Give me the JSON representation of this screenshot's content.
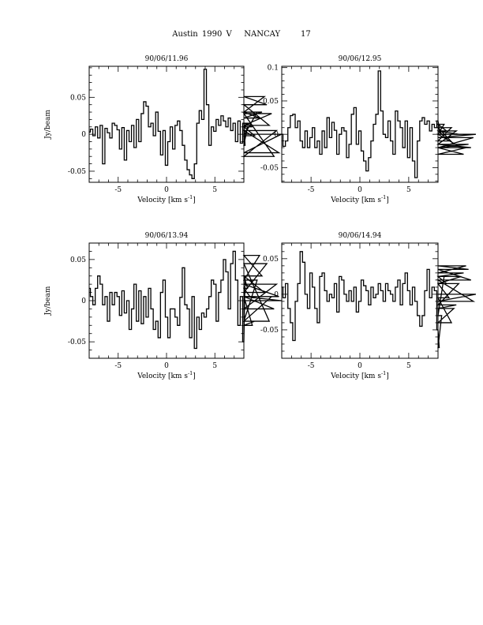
{
  "page": {
    "title": "Austin 1990 V   NANCAY     17"
  },
  "chart_data": [
    {
      "type": "line",
      "title": "90/06/11.96",
      "xlabel": "Velocity [km s",
      "xlabel_sup": "-1",
      "xlabel_close": "]",
      "ylabel": "Jy/beam",
      "xlim": [
        -8,
        8
      ],
      "ylim": [
        -0.065,
        0.092
      ],
      "xticks": [
        -5,
        0,
        5
      ],
      "xtick_labels": [
        "-5",
        "0",
        "5"
      ],
      "yticks": [
        -0.05,
        0,
        0.05
      ],
      "ytick_labels": [
        "-0.05",
        "0",
        "0.05"
      ],
      "series": [
        {
          "step": 0.25,
          "x_start": -8,
          "values": [
            0.003,
            0.007,
            -0.002,
            0.01,
            -0.005,
            0.012,
            -0.04,
            0.008,
            0.002,
            -0.005,
            0.015,
            0.012,
            0.006,
            -0.02,
            0.009,
            -0.035,
            0.005,
            -0.01,
            0.012,
            -0.018,
            0.02,
            -0.01,
            0.028,
            0.044,
            0.038,
            0.01,
            0.015,
            -0.002,
            0.03,
            0.004,
            -0.028,
            0.005,
            -0.042,
            -0.01,
            0.01,
            -0.02,
            0.012,
            0.018,
            0.005,
            -0.015,
            -0.035,
            -0.048,
            -0.055,
            -0.06,
            -0.04,
            0.015,
            0.032,
            0.02,
            0.088,
            0.04,
            -0.015,
            0.01,
            0.004,
            0.02,
            0.012,
            0.025,
            0.018,
            0.01,
            0.022,
            0.005,
            0.015,
            -0.01,
            0.018,
            -0.012,
            0.015,
            -0.015,
            0.01,
            0.015,
            0.01,
            -0.002,
            0.03,
            0.022,
            0.03,
            0.051,
            0.04,
            0.012,
            0.028,
            -0.03,
            0.005,
            -0.025,
            0.0
          ]
        }
      ]
    },
    {
      "type": "line",
      "title": "90/06/12.95",
      "xlabel": "Velocity [km s",
      "xlabel_sup": "-1",
      "xlabel_close": "]",
      "ylabel": "",
      "xlim": [
        -8,
        8
      ],
      "ylim": [
        -0.072,
        0.102
      ],
      "xticks": [
        -5,
        0,
        5
      ],
      "xtick_labels": [
        "-5",
        "0",
        "5"
      ],
      "yticks": [
        -0.05,
        0,
        0.05,
        0.1
      ],
      "ytick_labels": [
        "-0.05",
        "0",
        "0.05",
        "0.1"
      ],
      "series": [
        {
          "step": 0.25,
          "x_start": -8,
          "values": [
            0.0,
            -0.018,
            -0.01,
            0.01,
            0.028,
            0.03,
            0.01,
            0.02,
            -0.01,
            -0.02,
            0.005,
            -0.02,
            -0.005,
            0.01,
            -0.02,
            -0.01,
            -0.03,
            0.005,
            -0.02,
            0.025,
            -0.005,
            0.018,
            0.006,
            -0.03,
            0.0,
            0.01,
            0.005,
            -0.035,
            -0.015,
            0.03,
            0.04,
            -0.015,
            0.005,
            -0.025,
            -0.04,
            -0.055,
            -0.035,
            -0.01,
            0.015,
            0.03,
            0.095,
            0.035,
            0.0,
            -0.005,
            0.02,
            -0.01,
            -0.03,
            0.035,
            0.02,
            0.01,
            -0.02,
            0.02,
            -0.035,
            0.01,
            -0.04,
            -0.065,
            -0.01,
            0.02,
            0.025,
            0.015,
            0.02,
            0.005,
            0.015,
            0.01,
            0.02,
            0.01,
            0.0,
            0.015,
            0.005,
            -0.01,
            0.01,
            -0.015,
            0.005,
            0.0,
            -0.02,
            -0.03,
            -0.02,
            -0.015,
            -0.02,
            -0.005,
            0.0
          ]
        }
      ]
    },
    {
      "type": "line",
      "title": "90/06/13.94",
      "xlabel": "Velocity [km s",
      "xlabel_sup": "-1",
      "xlabel_close": "]",
      "ylabel": "Jy/beam",
      "xlim": [
        -8,
        8
      ],
      "ylim": [
        -0.07,
        0.07
      ],
      "xticks": [
        -5,
        0,
        5
      ],
      "xtick_labels": [
        "-5",
        "0",
        "5"
      ],
      "yticks": [
        -0.05,
        0,
        0.05
      ],
      "ytick_labels": [
        "-0.05",
        "0",
        "0.05"
      ],
      "series": [
        {
          "step": 0.25,
          "x_start": -8,
          "values": [
            0.015,
            0.005,
            -0.005,
            0.015,
            0.03,
            0.02,
            -0.005,
            0.005,
            -0.025,
            0.01,
            -0.005,
            0.01,
            0.005,
            -0.018,
            0.012,
            -0.015,
            0.0,
            -0.035,
            -0.01,
            0.02,
            -0.025,
            0.012,
            -0.028,
            0.005,
            -0.02,
            0.015,
            -0.01,
            -0.035,
            -0.025,
            -0.045,
            0.01,
            0.025,
            -0.02,
            -0.045,
            -0.01,
            -0.01,
            -0.02,
            -0.03,
            0.004,
            0.04,
            -0.005,
            -0.01,
            -0.045,
            0.005,
            -0.058,
            -0.02,
            -0.035,
            -0.015,
            -0.02,
            -0.01,
            0.005,
            0.025,
            0.02,
            -0.025,
            0.01,
            0.025,
            0.05,
            0.035,
            -0.01,
            0.045,
            0.06,
            0.025,
            -0.03,
            0.005,
            -0.05,
            0.03,
            0.015,
            0.005,
            -0.03,
            -0.025,
            0.025,
            0.055,
            0.03,
            0.01,
            0.045,
            -0.025,
            0.005,
            -0.01,
            0.02,
            0.005,
            0.0
          ]
        }
      ]
    },
    {
      "type": "line",
      "title": "90/06/14.94",
      "xlabel": "Velocity [km s",
      "xlabel_sup": "-1",
      "xlabel_close": "]",
      "ylabel": "",
      "xlim": [
        -8,
        8
      ],
      "ylim": [
        -0.09,
        0.072
      ],
      "xticks": [
        -5,
        0,
        5
      ],
      "xtick_labels": [
        "-5",
        "0",
        "5"
      ],
      "yticks": [
        -0.05,
        0,
        0.05
      ],
      "ytick_labels": [
        "-0.05",
        "0",
        "0.05"
      ],
      "series": [
        {
          "step": 0.25,
          "x_start": -8,
          "values": [
            0.01,
            -0.005,
            0.015,
            -0.02,
            -0.04,
            -0.065,
            -0.01,
            0.015,
            0.06,
            0.045,
            0.0,
            -0.02,
            0.03,
            0.01,
            -0.02,
            -0.04,
            0.025,
            0.03,
            0.005,
            -0.01,
            0.0,
            -0.005,
            0.015,
            -0.025,
            0.025,
            0.02,
            0.0,
            -0.01,
            0.005,
            -0.01,
            0.01,
            -0.025,
            -0.01,
            0.02,
            0.012,
            0.005,
            -0.015,
            0.01,
            -0.005,
            0.0,
            0.015,
            0.005,
            -0.01,
            0.015,
            0.005,
            0.0,
            -0.01,
            0.01,
            0.02,
            -0.015,
            0.015,
            0.03,
            0.005,
            -0.015,
            0.01,
            -0.01,
            -0.03,
            -0.045,
            -0.03,
            0.005,
            0.035,
            -0.005,
            0.01,
            0.005,
            -0.05,
            -0.075,
            -0.03,
            0.025,
            0.015,
            -0.005,
            -0.04,
            -0.02,
            -0.015,
            0.015,
            0.025,
            0.03,
            0.04,
            0.035,
            0.02,
            -0.01,
            0.0
          ]
        }
      ]
    }
  ]
}
